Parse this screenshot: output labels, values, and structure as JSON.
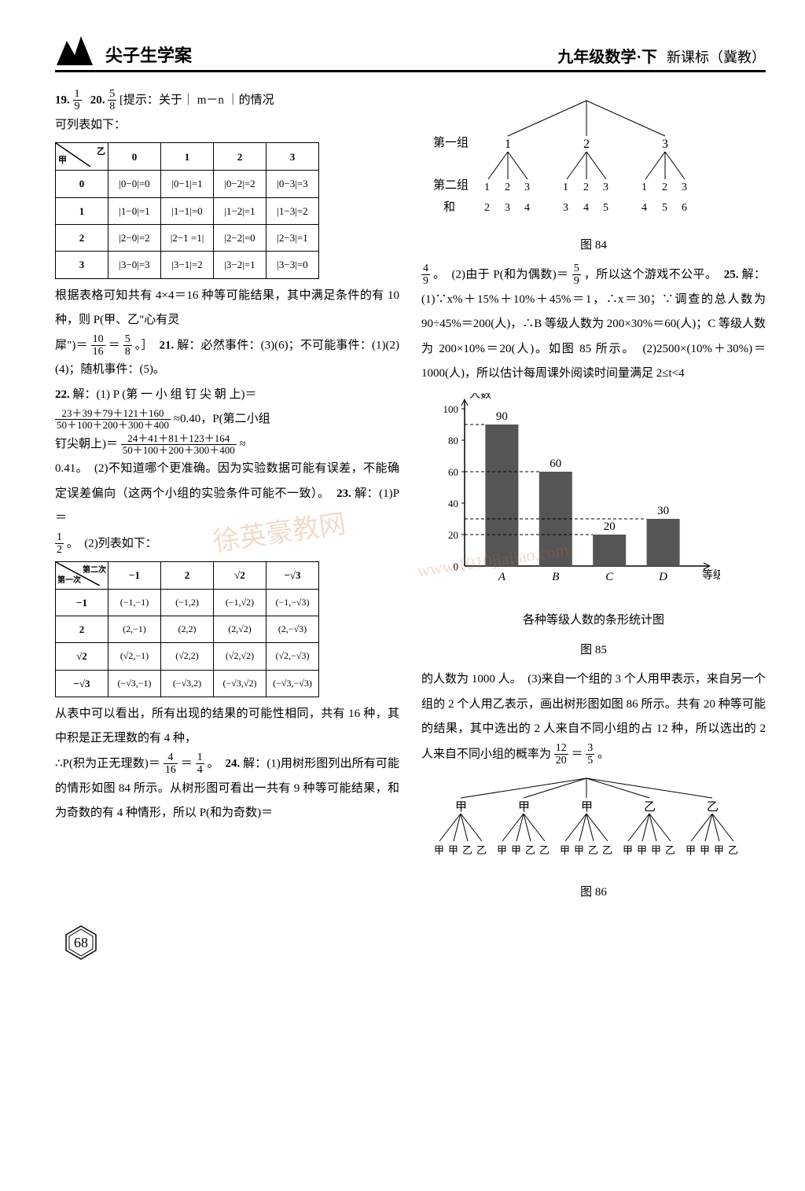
{
  "header": {
    "brand": "尖子生学案",
    "title": "九年级数学·下",
    "edition": "新课标（冀教）"
  },
  "left": {
    "q19_label": "19.",
    "q19_ans_n": "1",
    "q19_ans_d": "9",
    "q20_label": "20.",
    "q20_ans_n": "5",
    "q20_ans_d": "8",
    "q20_hint": "[提示：关于｜ m－n ｜的情况",
    "q20_hint2": "可列表如下：",
    "table1": {
      "corner_top": "乙",
      "corner_bottom": "甲",
      "cols": [
        "0",
        "1",
        "2",
        "3"
      ],
      "rows": [
        {
          "h": "0",
          "c": [
            "|0−0|=0",
            "|0−1|=1",
            "|0−2|=2",
            "|0−3|=3"
          ]
        },
        {
          "h": "1",
          "c": [
            "|1−0|=1",
            "|1−1|=0",
            "|1−2|=1",
            "|1−3|=2"
          ]
        },
        {
          "h": "2",
          "c": [
            "|2−0|=2",
            "|2−1 =1|",
            "|2−2|=0",
            "|2−3|=1"
          ]
        },
        {
          "h": "3",
          "c": [
            "|3−0|=3",
            "|3−1|=2",
            "|3−2|=1",
            "|3−3|=0"
          ]
        }
      ]
    },
    "para1": "根据表格可知共有 4×4＝16 种等可能结果，其中满足条件的有 10 种，则 P(甲、乙\"心有灵",
    "para1b_pre": "犀\")＝",
    "para1b_f1n": "10",
    "para1b_f1d": "16",
    "para1b_eq": "＝",
    "para1b_f2n": "5",
    "para1b_f2d": "8",
    "para1b_post": "。］",
    "q21_label": "21.",
    "q21_text": "解：必然事件：(3)(6)；不可能事件：(1)(2)(4)；随机事件：(5)。",
    "q22_label": "22.",
    "q22_text1": "解：(1) P (第 一 小 组 钉 尖 朝 上)＝",
    "q22_f1n": "23＋39＋79＋121＋160",
    "q22_f1d": "50＋100＋200＋300＋400",
    "q22_approx": "≈0.40，P(第二小组",
    "q22_text2_pre": "钉尖朝上)＝",
    "q22_f2n": "24＋41＋81＋123＋164",
    "q22_f2d": "50＋100＋200＋300＋400",
    "q22_approx2": "≈",
    "q22_text3": "0.41。　(2)不知道哪个更准确。因为实验数据可能有误差，不能确定误差偏向（这两个小组的实验条件可能不一致）。",
    "q23_label": "23.",
    "q23_text1_pre": "解：(1)P＝",
    "q23_f1n": "1",
    "q23_f1d": "2",
    "q23_text1_post": "。　(2)列表如下：",
    "table2": {
      "corner_top": "第二次",
      "corner_bottom": "第一次",
      "cols": [
        "−1",
        "2",
        "√2",
        "−√3"
      ],
      "rows": [
        {
          "h": "−1",
          "c": [
            "(−1,−1)",
            "(−1,2)",
            "(−1,√2)",
            "(−1,−√3)"
          ]
        },
        {
          "h": "2",
          "c": [
            "(2,−1)",
            "(2,2)",
            "(2,√2)",
            "(2,−√3)"
          ]
        },
        {
          "h": "√2",
          "c": [
            "(√2,−1)",
            "(√2,2)",
            "(√2,√2)",
            "(√2,−√3)"
          ]
        },
        {
          "h": "−√3",
          "c": [
            "(−√3,−1)",
            "(−√3,2)",
            "(−√3,√2)",
            "(−√3,−√3)"
          ]
        }
      ]
    },
    "para2": "从表中可以看出，所有出现的结果的可能性相同，共有 16 种，其中积是正无理数的有 4 种，",
    "para2b_pre": "∴P(积为正无理数)＝",
    "para2b_f1n": "4",
    "para2b_f1d": "16",
    "para2b_eq": "＝",
    "para2b_f2n": "1",
    "para2b_f2d": "4",
    "para2b_post": "。",
    "q24_label": "24.",
    "q24_text": "解：(1)用树形图列出所有可能的情形如图 84 所示。从树形图可看出一共有 9 种等可能结果，和为奇数的有 4 种情形，所以 P(和为奇数)＝"
  },
  "right": {
    "tree84": {
      "row1_label": "第一组",
      "row2_label": "第二组",
      "row3_label": "和",
      "level1": [
        "1",
        "2",
        "3"
      ],
      "level2": [
        "1",
        "2",
        "3",
        "1",
        "2",
        "3",
        "1",
        "2",
        "3"
      ],
      "sums": [
        "2",
        "3",
        "4",
        "3",
        "4",
        "5",
        "4",
        "5",
        "6"
      ]
    },
    "fig84": "图 84",
    "cont24_pre": "",
    "cont24_f1n": "4",
    "cont24_f1d": "9",
    "cont24_mid": "。　(2)由于 P(和为偶数)＝",
    "cont24_f2n": "5",
    "cont24_f2d": "9",
    "cont24_post": "，所以这个游戏不公平。",
    "q25_label": "25.",
    "q25_text": "解：(1)∵x%＋15%＋10%＋45%＝1，∴x＝30；∵调查的总人数为 90÷45%＝200(人)，∴B 等级人数为 200×30%＝60(人)；C 等级人数为 200×10%＝20(人)。如图 85 所示。　(2)2500×(10%＋30%)＝1000(人)，所以估计每周课外阅读时间量满足 2≤t<4",
    "chart": {
      "yaxis_label": "人数",
      "xaxis_label": "等级",
      "ymax": 100,
      "yticks": [
        20,
        40,
        60,
        80,
        100
      ],
      "cats": [
        "A",
        "B",
        "C",
        "D"
      ],
      "values": [
        90,
        60,
        20,
        30
      ],
      "bar_color": "#555555",
      "dashed_color": "#000",
      "axis_color": "#000",
      "value_font": 15
    },
    "chart_caption": "各种等级人数的条形统计图",
    "fig85": "图 85",
    "para3_pre": "的人数为 1000 人。　(3)来自一个组的 3 个人用甲表示，来自另一个组的 2 个人用乙表示，画出树形图如图 86 所示。共有 20 种等可能的结果，其中选出的 2 人来自不同小组的占 12 种，所以选出的 2 人来自不同小组的概率为",
    "para3_f1n": "12",
    "para3_f1d": "20",
    "para3_eq": "＝",
    "para3_f2n": "3",
    "para3_f2d": "5",
    "para3_post": "。",
    "tree86": {
      "tops": [
        "甲",
        "甲",
        "甲",
        "乙",
        "乙"
      ],
      "bottoms": [
        [
          "甲",
          "甲",
          "乙",
          "乙"
        ],
        [
          "甲",
          "甲",
          "乙",
          "乙"
        ],
        [
          "甲",
          "甲",
          "乙",
          "乙"
        ],
        [
          "甲",
          "甲",
          "甲",
          "乙"
        ],
        [
          "甲",
          "甲",
          "甲",
          "乙"
        ]
      ]
    },
    "fig86": "图 86"
  },
  "pagenum": "68"
}
